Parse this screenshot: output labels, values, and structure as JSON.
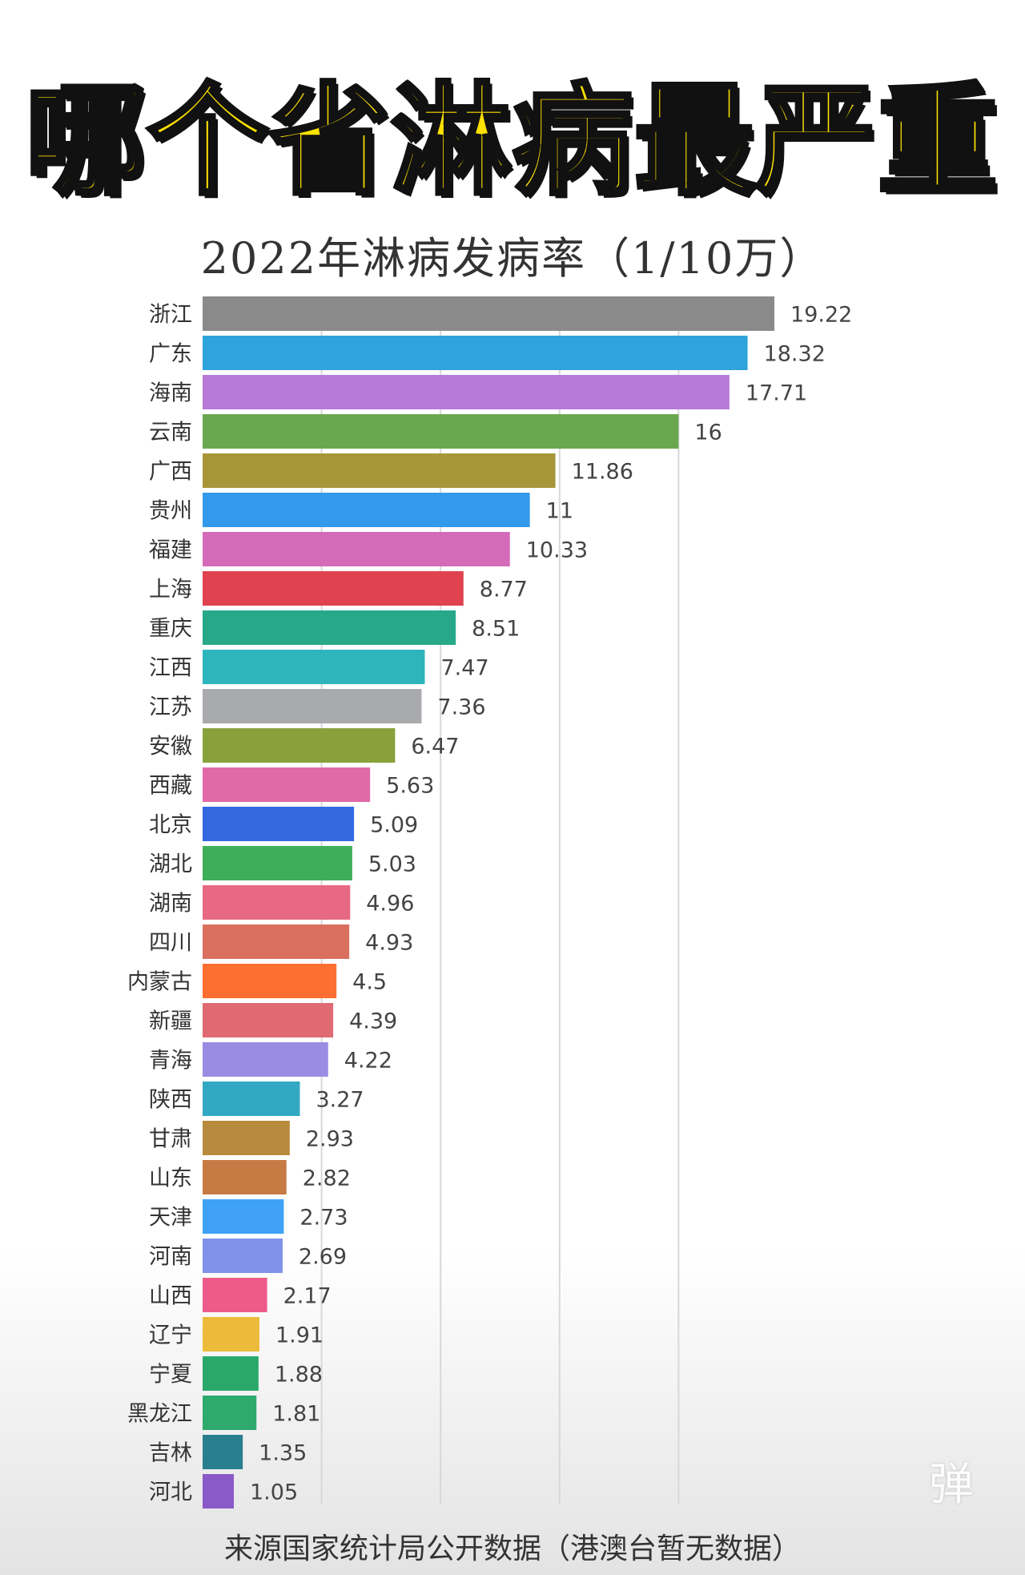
{
  "headline": "哪个省淋病最严重",
  "chart_data": {
    "type": "bar",
    "orientation": "horizontal",
    "title": "2022年淋病发病率（1/10万）",
    "source": "来源国家统计局公开数据（港澳台暂无数据）",
    "categories": [
      "浙江",
      "广东",
      "海南",
      "云南",
      "广西",
      "贵州",
      "福建",
      "上海",
      "重庆",
      "江西",
      "江苏",
      "安徽",
      "西藏",
      "北京",
      "湖北",
      "湖南",
      "四川",
      "内蒙古",
      "新疆",
      "青海",
      "陕西",
      "甘肃",
      "山东",
      "天津",
      "河南",
      "山西",
      "辽宁",
      "宁夏",
      "黑龙江",
      "吉林",
      "河北"
    ],
    "values": [
      19.22,
      18.32,
      17.71,
      16,
      11.86,
      11,
      10.33,
      8.77,
      8.51,
      7.47,
      7.36,
      6.47,
      5.63,
      5.09,
      5.03,
      4.96,
      4.93,
      4.5,
      4.39,
      4.22,
      3.27,
      2.93,
      2.82,
      2.73,
      2.69,
      2.17,
      1.91,
      1.88,
      1.81,
      1.35,
      1.05
    ],
    "value_labels": [
      "19.22",
      "18.32",
      "17.71",
      "16",
      "11.86",
      "11",
      "10.33",
      "8.77",
      "8.51",
      "7.47",
      "7.36",
      "6.47",
      "5.63",
      "5.09",
      "5.03",
      "4.96",
      "4.93",
      "4.5",
      "4.39",
      "4.22",
      "3.27",
      "2.93",
      "2.82",
      "2.73",
      "2.69",
      "2.17",
      "1.91",
      "1.88",
      "1.81",
      "1.35",
      "1.05"
    ],
    "colors": [
      "#8a8a8a",
      "#2fa4dc",
      "#b77ad8",
      "#6aa84f",
      "#a89538",
      "#3399ea",
      "#d46bb8",
      "#e0434f",
      "#27a989",
      "#2eb5bc",
      "#a9aaad",
      "#88a13b",
      "#e06aa7",
      "#3468e0",
      "#3fae5a",
      "#e86983",
      "#d9705f",
      "#fc6f31",
      "#e06a72",
      "#9a8be3",
      "#33a8c2",
      "#b88a3d",
      "#c67b45",
      "#3fa2f7",
      "#7f91e8",
      "#ee5b8b",
      "#edbb3a",
      "#2aa86b",
      "#2eaa6d",
      "#2a7f8e",
      "#8a5ac8"
    ],
    "xlim": [
      0,
      20
    ],
    "grid": "vertical",
    "watermark": "弹"
  }
}
